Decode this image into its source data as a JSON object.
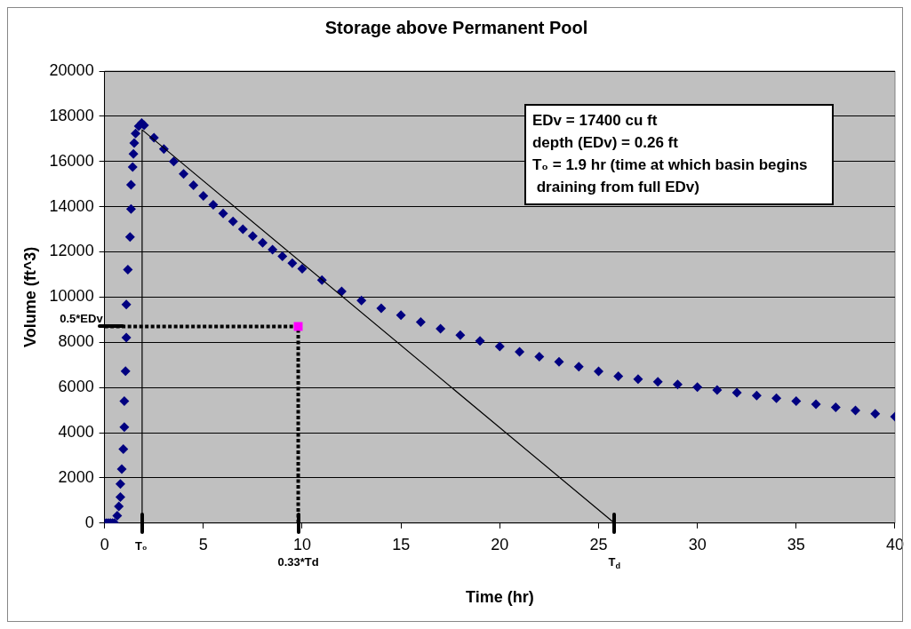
{
  "chart_data": {
    "type": "scatter",
    "title": "Storage above Permanent Pool",
    "xlabel": "Time (hr)",
    "ylabel": "Volume (ft^3)",
    "xlim": [
      0,
      40
    ],
    "xticks": [
      0,
      5,
      10,
      15,
      20,
      25,
      30,
      35,
      40
    ],
    "ylim": [
      0,
      20000
    ],
    "yticks": [
      0,
      2000,
      4000,
      6000,
      8000,
      10000,
      12000,
      14000,
      16000,
      18000,
      20000
    ],
    "grid": "y",
    "legend": false,
    "marker": "diamond",
    "series": [
      {
        "color": "#000080",
        "x": [
          0.0,
          0.1,
          0.2,
          0.3,
          0.4,
          0.5,
          0.64,
          0.72,
          0.8,
          0.8,
          0.87,
          0.95,
          1.0,
          1.0,
          1.06,
          1.1,
          1.1,
          1.18,
          1.29,
          1.34,
          1.34,
          1.42,
          1.46,
          1.5,
          1.57,
          1.73,
          1.88,
          2.0,
          2.5,
          3,
          3.5,
          4,
          4.5,
          5,
          5.5,
          6,
          6.5,
          7,
          7.5,
          8,
          8.5,
          9,
          9.5,
          10,
          11,
          12,
          13,
          14,
          15,
          16,
          17,
          18,
          19,
          20,
          21,
          22,
          23,
          24,
          25,
          26,
          27,
          28,
          29,
          30,
          31,
          32,
          33,
          34,
          35,
          36,
          37,
          38,
          39,
          40
        ],
        "values": [
          0,
          0,
          0,
          0,
          0,
          0,
          330,
          740,
          1150,
          1730,
          2390,
          3270,
          4250,
          5400,
          6720,
          8210,
          9670,
          11210,
          12660,
          13900,
          14970,
          15750,
          16330,
          16820,
          17240,
          17560,
          17700,
          17600,
          17050,
          16550,
          16000,
          15450,
          14950,
          14480,
          14080,
          13700,
          13350,
          13000,
          12700,
          12400,
          12100,
          11800,
          11500,
          11250,
          10750,
          10250,
          9850,
          9500,
          9200,
          8900,
          8600,
          8320,
          8060,
          7810,
          7580,
          7360,
          7140,
          6920,
          6710,
          6500,
          6370,
          6250,
          6130,
          6020,
          5890,
          5770,
          5640,
          5520,
          5400,
          5260,
          5120,
          4980,
          4840,
          4710
        ]
      },
      {
        "type": "line",
        "color": "#000000",
        "marker": "none",
        "line_style": "solid",
        "x": [
          1.9,
          1.9,
          25.8
        ],
        "values": [
          0,
          17400,
          0
        ]
      },
      {
        "type": "line",
        "color": "#000000",
        "marker": "none",
        "line_style": "dotted",
        "x": [
          0,
          9.8,
          9.8
        ],
        "values": [
          8700,
          8700,
          0
        ]
      },
      {
        "type": "scatter",
        "color": "#ff00ff",
        "marker": "square",
        "x": [
          9.8
        ],
        "values": [
          8700
        ]
      }
    ],
    "annotations": [
      {
        "text": "0.5*EDv",
        "x": 0,
        "y": 8700
      },
      {
        "text": "T₀",
        "x": 1.9,
        "y": 0
      },
      {
        "text": "0.33*Td",
        "x": 9.8,
        "y": 0
      },
      {
        "text": "T$_{d}$",
        "x": 25.8,
        "y": 0
      },
      "EDv = 17400 cu ft",
      "depth (EDv) = 0.26 ft",
      "T₀ = 1.9 hr (time at which basin begins draining from full EDv)"
    ]
  }
}
